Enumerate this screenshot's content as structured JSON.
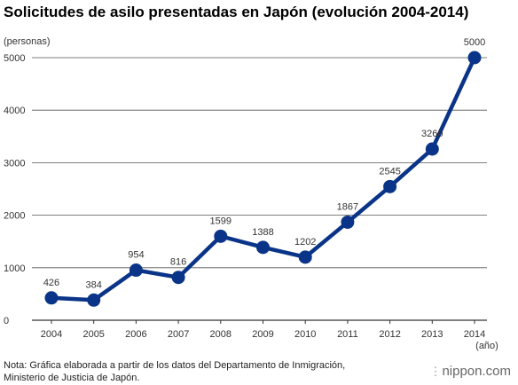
{
  "chart_data": {
    "type": "line",
    "title": "Solicitudes de asilo presentadas en Japón (evolución 2004-2014)",
    "ylabel": "(personas)",
    "xlabel": "(año)",
    "x": [
      "2004",
      "2005",
      "2006",
      "2007",
      "2008",
      "2009",
      "2010",
      "2011",
      "2012",
      "2013",
      "2014"
    ],
    "values": [
      426,
      384,
      954,
      816,
      1599,
      1388,
      1202,
      1867,
      2545,
      3260,
      5000
    ],
    "data_labels": [
      "426",
      "384",
      "954",
      "816",
      "1599",
      "1388",
      "1202",
      "1867",
      "2545",
      "3260",
      "5000"
    ],
    "yticks": [
      0,
      1000,
      2000,
      3000,
      4000,
      5000
    ],
    "ytick_labels": [
      "0",
      "1000",
      "2000",
      "3000",
      "4000",
      "5000"
    ],
    "ylim": [
      0,
      5000
    ],
    "grid": true,
    "line_color": "#0a3487"
  },
  "footer": {
    "note_line1": "Nota: Gráfica elaborada a partir de los datos del Departamento de Inmigración,",
    "note_line2": "Ministerio de Justicia de Japón.",
    "brand": "nippon.com"
  }
}
